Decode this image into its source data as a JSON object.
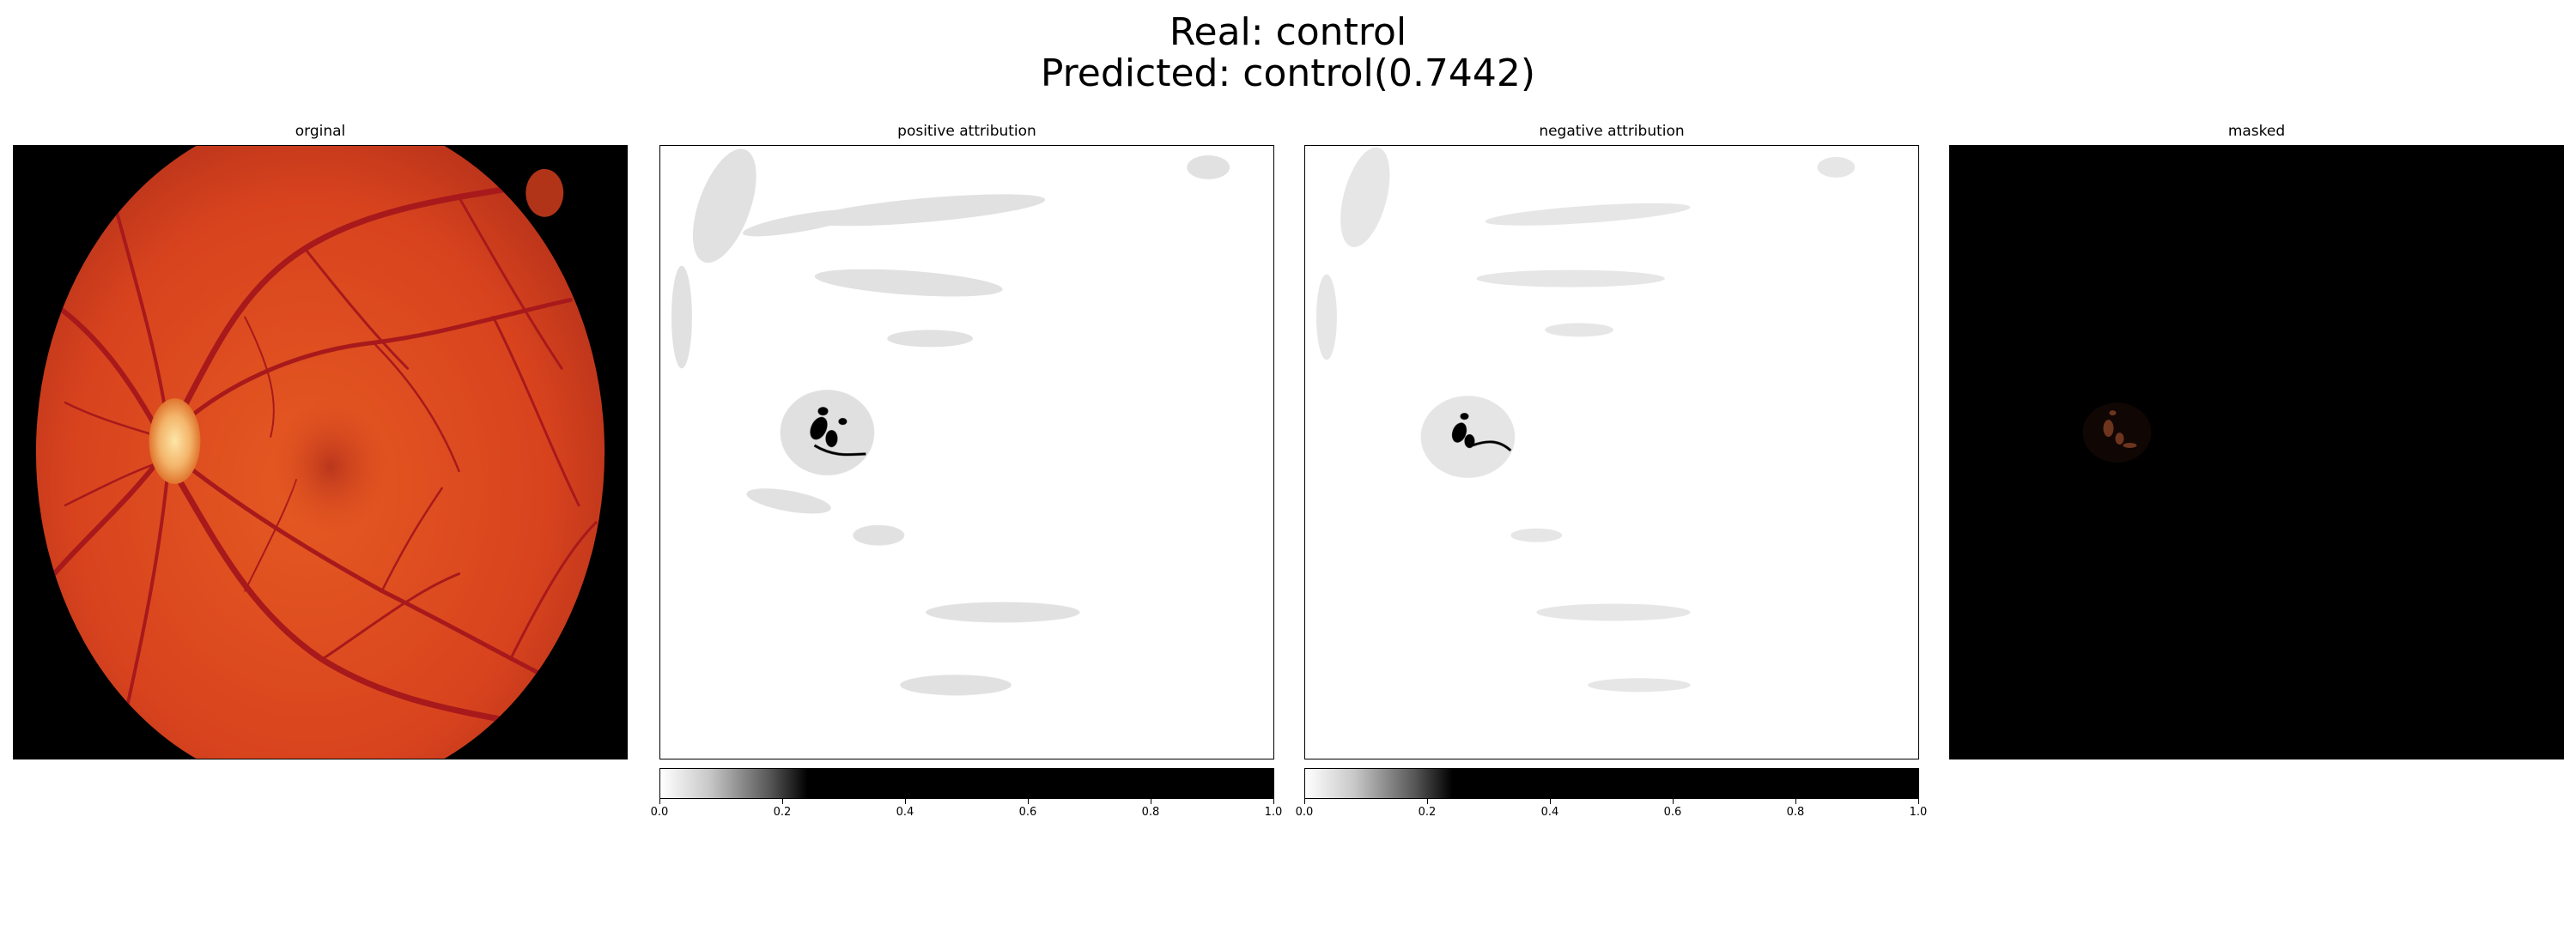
{
  "figure": {
    "title_line1": "Real: control",
    "title_line2": "Predicted: control(0.7442)"
  },
  "panels": [
    {
      "title": "orginal"
    },
    {
      "title": "positive attribution"
    },
    {
      "title": "negative attribution"
    },
    {
      "title": "masked"
    }
  ],
  "colorbar": {
    "ticks": [
      "0.0",
      "0.2",
      "0.4",
      "0.6",
      "0.8",
      "1.0"
    ],
    "cmap": "white-to-black"
  },
  "colors": {
    "fundus": "#d8431e",
    "optic_disc": "#f8c070",
    "vessel": "#a8191c",
    "background": "#000000"
  }
}
